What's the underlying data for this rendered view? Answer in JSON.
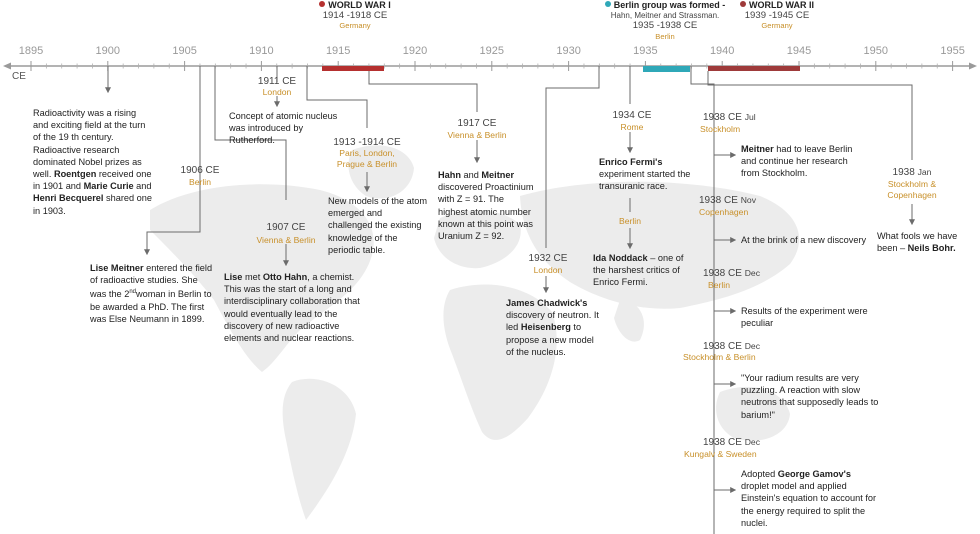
{
  "axis": {
    "era_label": "CE",
    "years": [
      "1895",
      "1900",
      "1905",
      "1910",
      "1915",
      "1920",
      "1925",
      "1930",
      "1935",
      "1940",
      "1945",
      "1950",
      "1955"
    ]
  },
  "colors": {
    "axis": "#9a9a9a",
    "line": "#6b6b6b",
    "place": "#c8902a",
    "wwi": "#b5302f",
    "berlin_group": "#2fa8b8",
    "wwii": "#9e3a3a",
    "map": "#ececec"
  },
  "periods": {
    "wwi": {
      "title": "WORLD WAR I",
      "years": "1914 -1918 CE",
      "place": "Germany"
    },
    "berlin_group": {
      "title": "Berlin group was formed -",
      "subtitle": "Hahn, Meitner and Strassman.",
      "years": "1935 -1938 CE",
      "place": "Berlin"
    },
    "wwii": {
      "title": "WORLD WAR II",
      "years": "1939 -1945 CE",
      "place": "Germany"
    }
  },
  "events": {
    "e1900": {
      "t1": "Radioactivity was a rising and exciting field at the turn of the 19 th century. Radioactive research dominated Nobel prizes as well. ",
      "b1": "Roentgen",
      "t2": " received one in 1901 and ",
      "b2": "Marie Curie",
      "t3": " and ",
      "b3": "Henri Becquerel",
      "t4": " shared one in 1903."
    },
    "e1906": {
      "year": "1906 CE",
      "place": "Berlin",
      "b1": "Lise Meitner",
      "t1": " entered the field of radioactive studies. She was the 2",
      "sup": "nd",
      "t2": "woman in Berlin to be awarded a PhD. The first was Else Neumann in 1899."
    },
    "e1907": {
      "year": "1907 CE",
      "place": "Vienna & Berlin",
      "b1": "Lise",
      "t1": " met ",
      "b2": "Otto Hahn",
      "t2": ", a chemist. This was the start of a long and interdisciplinary collaboration that would eventually lead to the discovery of new radioactive elements and nuclear reactions."
    },
    "e1911": {
      "year": "1911 CE",
      "place": "London",
      "t1": "Concept of atomic nucleus was introduced by Rutherford."
    },
    "e1913": {
      "year": "1913 -1914 CE",
      "place": "Paris, London, Prague & Berlin",
      "t1": "New models of the atom emerged and challenged the existing knowledge of the periodic table."
    },
    "e1917": {
      "year": "1917 CE",
      "place": "Vienna & Berlin",
      "b1": "Hahn",
      "t1": " and ",
      "b2": "Meitner",
      "t2": " discovered Proactinium with Z = 91. The highest atomic number known at this point was Uranium Z = 92."
    },
    "e1932": {
      "year": "1932 CE",
      "place": "London",
      "b1": "James Chadwick's",
      "t1": " discovery of neutron. It led ",
      "b2": "Heisenberg",
      "t2": " to propose a new model of the nucleus."
    },
    "e1934": {
      "year": "1934 CE",
      "place": "Rome",
      "b1": "Enrico Fermi's",
      "t1": " experiment started the transuranic race.",
      "place2": "Berlin",
      "b2": "Ida Noddack",
      "t2": " – one of the harshest critics of Enrico Fermi."
    },
    "e1938a": {
      "year": "1938 CE",
      "month": "Jul",
      "place": "Stockholm",
      "b1": "Meitner",
      "t1": " had to leave Berlin and continue her research from Stockholm."
    },
    "e1938b": {
      "year": "1938 CE",
      "month": "Nov",
      "place": "Copenhagen",
      "t1": "At the brink of a new discovery"
    },
    "e1938c": {
      "year": "1938 CE",
      "month": "Dec",
      "place": "Berlin",
      "t1": "Results of the experiment were peculiar"
    },
    "e1938d": {
      "year": "1938 CE",
      "month": "Dec",
      "place": "Stockholm & Berlin",
      "t1": "\"Your radium results are very puzzling. A reaction with slow neutrons that supposedly leads to barium!\""
    },
    "e1938e": {
      "year": "1938 CE",
      "month": "Dec",
      "place": "Kungalv & Sweden",
      "t1": "Adopted ",
      "b1": "George Gamov's",
      "t2": " droplet model and applied Einstein's equation to account for the energy required to split the nuclei."
    },
    "e1938j": {
      "year": "1938",
      "month": "Jan",
      "place": "Stockholm & Copenhagen",
      "t1": "What fools we have been – ",
      "b1": "Neils Bohr."
    }
  }
}
